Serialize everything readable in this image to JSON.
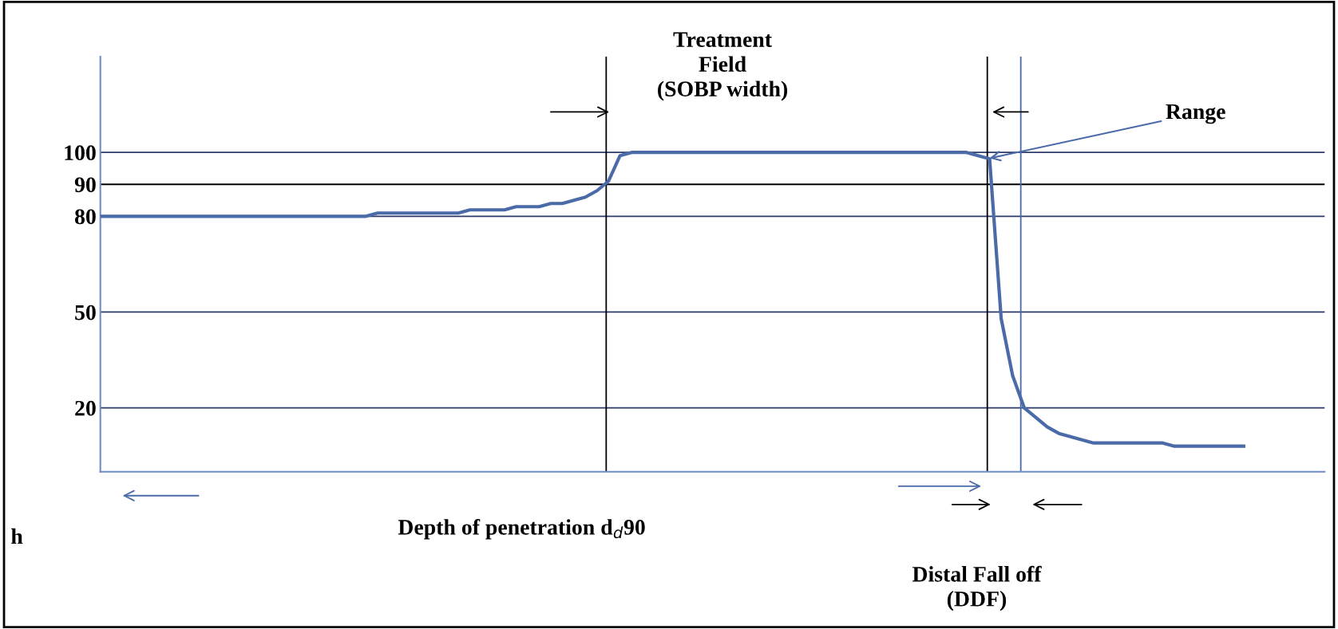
{
  "chart_data": {
    "type": "line",
    "categories": [
      null,
      null,
      null,
      null,
      null,
      null,
      null,
      null,
      null,
      null,
      null,
      null,
      null,
      null,
      null,
      null,
      null,
      null,
      null,
      null,
      null,
      null,
      null,
      null,
      null,
      null,
      null,
      null,
      null,
      null,
      null,
      null,
      null,
      null,
      null,
      null,
      null,
      null,
      null,
      null,
      null,
      null,
      null,
      null,
      null,
      null,
      null,
      null,
      null,
      null,
      null,
      null,
      null,
      null,
      null,
      null,
      null,
      null,
      null,
      null,
      null,
      null,
      null,
      null,
      null,
      null,
      null,
      null,
      null,
      null,
      null,
      null,
      null,
      null,
      null,
      null,
      null,
      null,
      null,
      null,
      null,
      null,
      null,
      null,
      null,
      null,
      null,
      null,
      null,
      null,
      null,
      null,
      null,
      null,
      null,
      null,
      null,
      null,
      null,
      null
    ],
    "series": [
      {
        "color": "#4a6aa8",
        "values": [
          80,
          80,
          80,
          80,
          80,
          80,
          80,
          80,
          80,
          80,
          80,
          80,
          80,
          80,
          80,
          80,
          80,
          80,
          80,
          80,
          80,
          80,
          80,
          80,
          81,
          81,
          81,
          81,
          81,
          81,
          81,
          81,
          82,
          82,
          82,
          82,
          83,
          83,
          83,
          84,
          84,
          85,
          86,
          88,
          91,
          99,
          100,
          100,
          100,
          100,
          100,
          100,
          100,
          100,
          100,
          100,
          100,
          100,
          100,
          100,
          100,
          100,
          100,
          100,
          100,
          100,
          100,
          100,
          100,
          100,
          100,
          100,
          100,
          100,
          100,
          100,
          99,
          98,
          48,
          30,
          20,
          17,
          14,
          12,
          11,
          10,
          9,
          9,
          9,
          9,
          9,
          9,
          9,
          8,
          8,
          8,
          8,
          8,
          8,
          8
        ]
      }
    ],
    "ylim": [
      0,
      130
    ],
    "yticks": [
      20,
      50,
      80,
      90,
      100
    ],
    "tick_labels": "y",
    "grid": false,
    "marker": "none",
    "line_style": "solid",
    "ref_lines": [
      {
        "axis": "y",
        "value": 100,
        "color": "#2b3a67"
      },
      {
        "axis": "y",
        "value": 90,
        "color": "#000000"
      },
      {
        "axis": "y",
        "value": 80,
        "color": "#2b3a67"
      },
      {
        "axis": "y",
        "value": 50,
        "color": "#2b3a67"
      },
      {
        "axis": "y",
        "value": 20,
        "color": "#2b3a67"
      }
    ],
    "annotations": [
      "Treatment\nField\n(SOBP width)",
      "Range",
      "Depth of penetration d$_{d}$90",
      "Distal Fall off\n(DDF)",
      "h"
    ]
  }
}
